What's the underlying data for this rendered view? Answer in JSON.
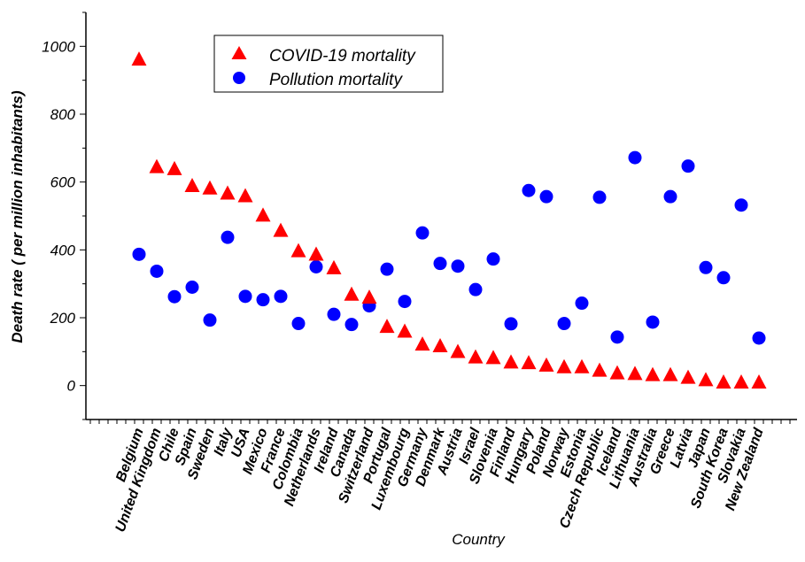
{
  "chart_data": {
    "type": "scatter",
    "title": "",
    "xlabel": "Country",
    "ylabel": "Death rate ( per million inhabitants)",
    "ylim": [
      -100,
      1100
    ],
    "yticks": [
      0,
      200,
      400,
      600,
      800,
      1000
    ],
    "grid": false,
    "legend_position": "top-center",
    "categories": [
      "Belgium",
      "United Kingdom",
      "Chile",
      "Spain",
      "Sweden",
      "Italy",
      "USA",
      "Mexico",
      "France",
      "Colombia",
      "Netherlands",
      "Ireland",
      "Canada",
      "Switzerland",
      "Portugal",
      "Luxembourg",
      "Germany",
      "Denmark",
      "Austria",
      "Israel",
      "Slovenia",
      "Finland",
      "Hungary",
      "Poland",
      "Norway",
      "Estonia",
      "Czech Republic",
      "Iceland",
      "Lithuania",
      "Australia",
      "Greece",
      "Latvia",
      "Japan",
      "South Korea",
      "Slovakia",
      "New Zealand"
    ],
    "series": [
      {
        "name": "COVID-19 mortality",
        "marker": "triangle",
        "color": "#ff0000",
        "values": [
          960,
          643,
          637,
          587,
          580,
          565,
          557,
          500,
          455,
          395,
          385,
          345,
          267,
          258,
          172,
          158,
          120,
          115,
          98,
          82,
          80,
          67,
          65,
          58,
          53,
          53,
          43,
          35,
          33,
          30,
          30,
          22,
          15,
          8,
          8,
          8
        ]
      },
      {
        "name": "Pollution mortality",
        "marker": "circle",
        "color": "#0000ff",
        "values": [
          387,
          337,
          262,
          290,
          193,
          437,
          263,
          253,
          263,
          183,
          350,
          210,
          180,
          235,
          343,
          248,
          450,
          360,
          352,
          283,
          373,
          182,
          575,
          557,
          183,
          243,
          555,
          143,
          672,
          187,
          557,
          647,
          348,
          318,
          532,
          140
        ]
      }
    ]
  }
}
